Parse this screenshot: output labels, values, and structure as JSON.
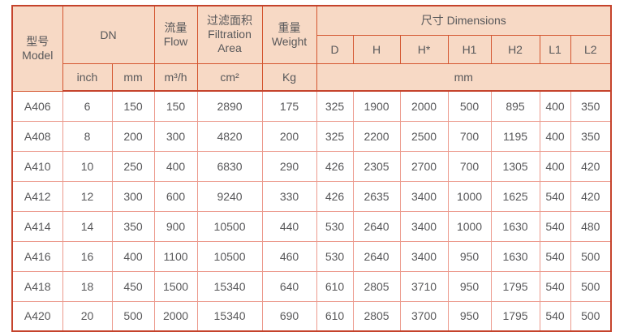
{
  "colors": {
    "header-bg": "#f7d9c5",
    "border-strong": "#c5432c",
    "header-border": "#d4552f",
    "grid-border": "#ec9a8d",
    "text-color": "#58585a"
  },
  "table": {
    "header": {
      "model_zh": "型号",
      "model_en": "Model",
      "dn": "DN",
      "flow_zh": "流量",
      "flow_en": "Flow",
      "filtration_zh": "过滤面积",
      "filtration_en1": "Filtration",
      "filtration_en2": "Area",
      "weight_zh": "重量",
      "weight_en": "Weight",
      "dimensions": "尺寸 Dimensions",
      "dim_cols": [
        "D",
        "H",
        "H*",
        "H1",
        "H2",
        "L1",
        "L2"
      ],
      "units": {
        "inch": "inch",
        "mm": "mm",
        "flow": "m³/h",
        "area": "cm²",
        "weight": "Kg",
        "dimensions": "mm"
      }
    },
    "rows": [
      {
        "model": "A406",
        "values": [
          6,
          150,
          150,
          2890,
          175,
          325,
          1900,
          2000,
          500,
          895,
          400,
          350
        ]
      },
      {
        "model": "A408",
        "values": [
          8,
          200,
          300,
          4820,
          200,
          325,
          2200,
          2500,
          700,
          1195,
          400,
          350
        ]
      },
      {
        "model": "A410",
        "values": [
          10,
          250,
          400,
          6830,
          290,
          426,
          2305,
          2700,
          700,
          1305,
          400,
          420
        ]
      },
      {
        "model": "A412",
        "values": [
          12,
          300,
          600,
          9240,
          330,
          426,
          2635,
          3400,
          1000,
          1625,
          540,
          420
        ]
      },
      {
        "model": "A414",
        "values": [
          14,
          350,
          900,
          10500,
          440,
          530,
          2640,
          3400,
          1000,
          1630,
          540,
          480
        ]
      },
      {
        "model": "A416",
        "values": [
          16,
          400,
          1100,
          10500,
          460,
          530,
          2640,
          3400,
          950,
          1630,
          540,
          500
        ]
      },
      {
        "model": "A418",
        "values": [
          18,
          450,
          1500,
          15340,
          640,
          610,
          2805,
          3710,
          950,
          1795,
          540,
          500
        ]
      },
      {
        "model": "A420",
        "values": [
          20,
          500,
          2000,
          15340,
          690,
          610,
          2805,
          3700,
          950,
          1795,
          540,
          500
        ]
      }
    ]
  }
}
